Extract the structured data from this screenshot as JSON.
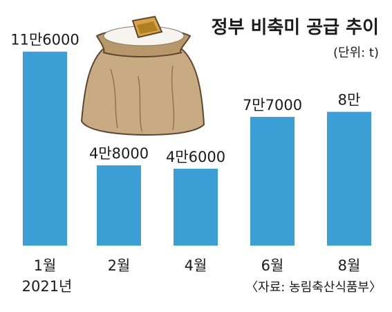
{
  "chart_data": {
    "type": "bar",
    "title": "정부 비축미 공급 추이",
    "unit_label": "(단위: t)",
    "source": "〈자료: 농림축산식품부〉",
    "categories": [
      "1월",
      "2월",
      "4월",
      "6월",
      "8월"
    ],
    "year_label": "2021년",
    "values": [
      116000,
      48000,
      46000,
      77000,
      80000
    ],
    "value_labels": [
      "11만6000",
      "4만8000",
      "4만6000",
      "7만7000",
      "8만"
    ],
    "bar_color": "#3b9fd6",
    "ylim": [
      0,
      120000
    ],
    "grid": false,
    "legend": "none"
  }
}
